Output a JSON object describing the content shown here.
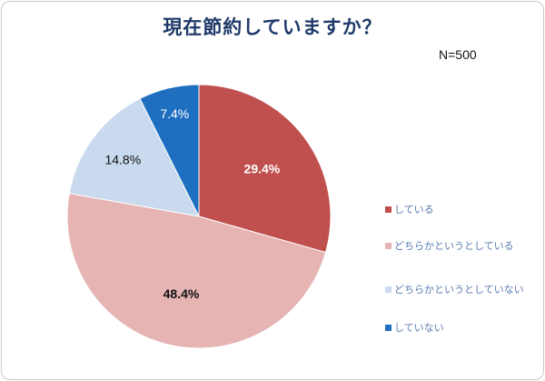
{
  "title": "現在節約していますか？",
  "sample_size": "N=500",
  "chart_data": {
    "type": "pie",
    "title": "現在節約していますか？",
    "start_angle_deg": 0,
    "direction": "clockwise",
    "slices": [
      {
        "label": "している",
        "value": 29.4,
        "display": "29.4%",
        "color": "#c0504d",
        "label_color": "#ffffff"
      },
      {
        "label": "どちらかというとしている",
        "value": 48.4,
        "display": "48.4%",
        "color": "#e6b4b3",
        "label_color": "#111111"
      },
      {
        "label": "どちらかというとしていない",
        "value": 14.8,
        "display": "14.8%",
        "color": "#c9d9ee",
        "label_color": "#111111"
      },
      {
        "label": "していない",
        "value": 7.4,
        "display": "7.4%",
        "color": "#1f6fc0",
        "label_color": "#ffffff"
      }
    ],
    "legend_position": "right"
  }
}
